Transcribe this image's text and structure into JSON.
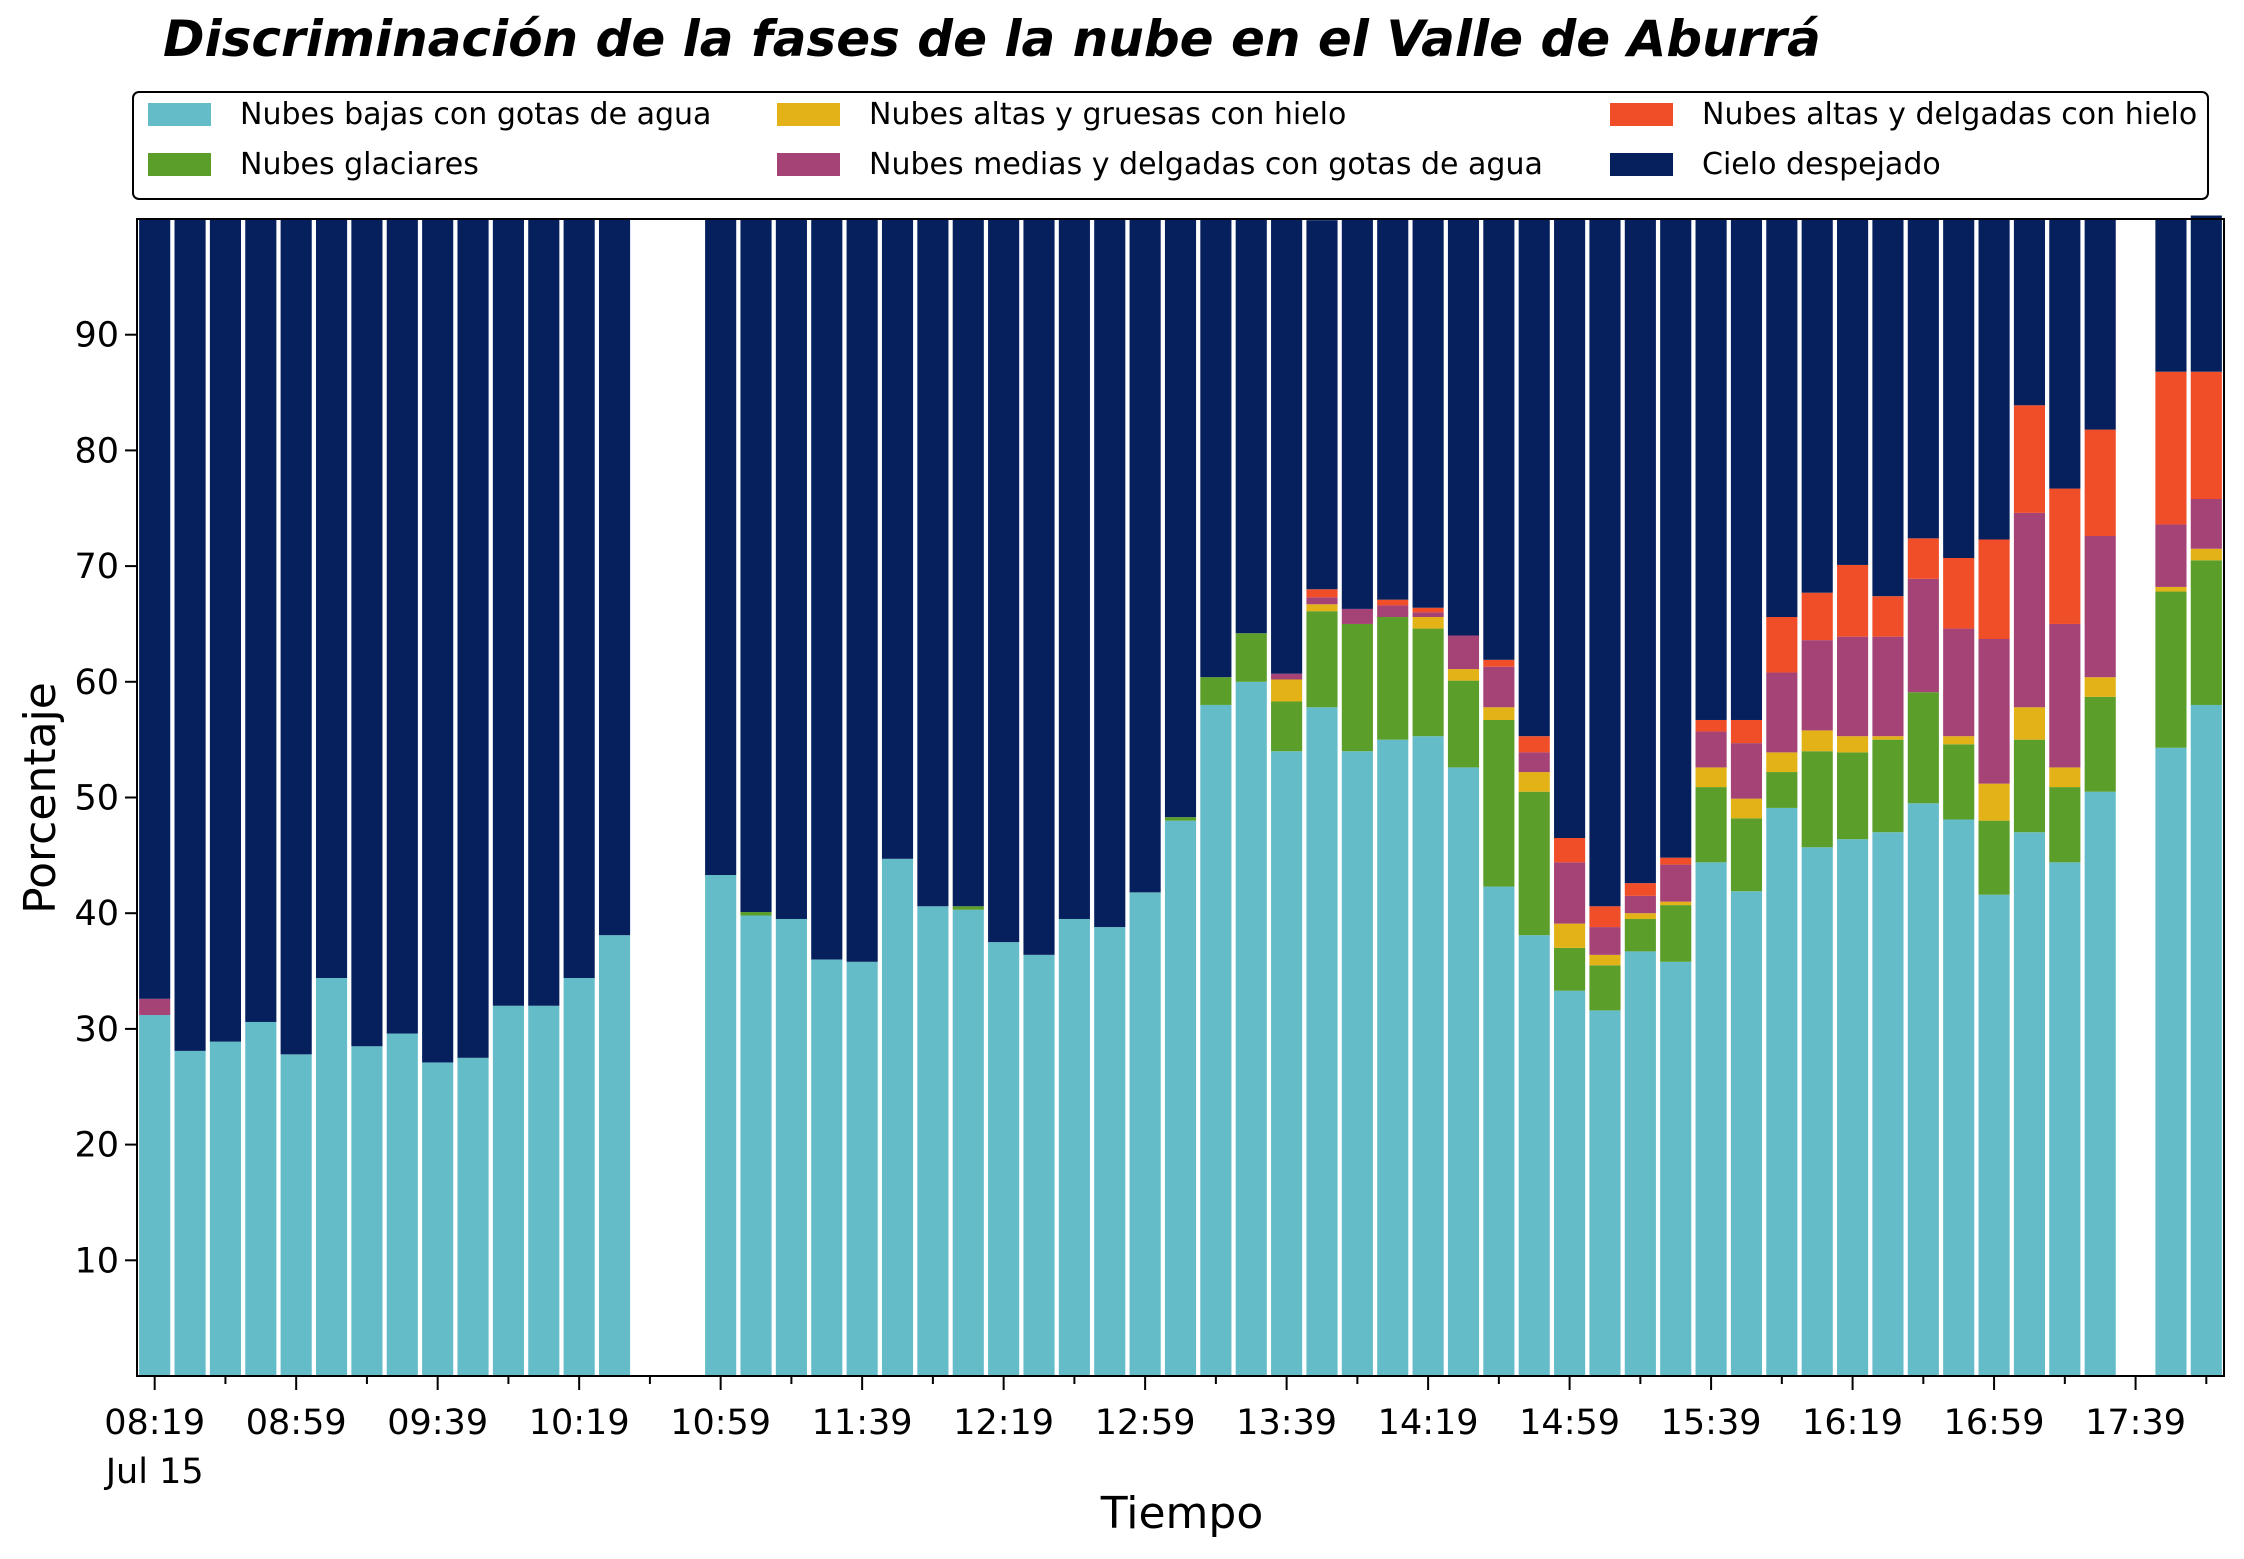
{
  "chart_data": {
    "type": "bar",
    "stacked": true,
    "title": "Discriminación de la fases de la nube en el Valle de Aburrá",
    "xlabel": "Tiempo",
    "ylabel": "Porcentaje",
    "ylim": [
      0,
      100
    ],
    "yticks": [
      10,
      20,
      30,
      40,
      50,
      60,
      70,
      80,
      90
    ],
    "xtick_labels": [
      "08:19",
      "08:59",
      "09:39",
      "10:19",
      "10:59",
      "11:39",
      "12:19",
      "12:59",
      "13:39",
      "14:19",
      "14:59",
      "15:39",
      "16:19",
      "16:59",
      "17:39"
    ],
    "xtick_sublabel": "Jul 15",
    "legend_position": "top",
    "grid": false,
    "x": [
      "08:19",
      "08:29",
      "08:39",
      "08:49",
      "08:59",
      "09:09",
      "09:19",
      "09:29",
      "09:39",
      "09:49",
      "09:59",
      "10:09",
      "10:19",
      "10:29",
      "10:39",
      "10:49",
      "10:59",
      "11:09",
      "11:19",
      "11:29",
      "11:39",
      "11:49",
      "11:59",
      "12:09",
      "12:19",
      "12:29",
      "12:39",
      "12:49",
      "12:59",
      "13:09",
      "13:19",
      "13:29",
      "13:39",
      "13:49",
      "13:59",
      "14:09",
      "14:19",
      "14:29",
      "14:39",
      "14:49",
      "14:59",
      "15:09",
      "15:19",
      "15:29",
      "15:39",
      "15:49",
      "15:59",
      "16:09",
      "16:19",
      "16:29",
      "16:39",
      "16:49",
      "16:59",
      "17:09",
      "17:19",
      "17:29",
      "17:39",
      "17:49",
      "17:59"
    ],
    "series": [
      {
        "name": "Nubes bajas con gotas de agua",
        "color": "#65BCC9",
        "values": [
          31.2,
          28.1,
          28.9,
          30.6,
          27.8,
          34.4,
          28.5,
          29.6,
          27.1,
          27.5,
          32.0,
          32.0,
          34.4,
          38.1,
          null,
          null,
          43.3,
          39.8,
          39.5,
          36.0,
          35.8,
          44.7,
          40.6,
          40.3,
          37.5,
          36.4,
          39.5,
          38.8,
          41.8,
          48.0,
          58.0,
          60.0,
          54.0,
          57.8,
          54.0,
          55.0,
          55.3,
          52.6,
          42.3,
          38.1,
          33.3,
          31.6,
          36.7,
          35.8,
          44.4,
          41.9,
          49.1,
          45.7,
          46.4,
          47.0,
          49.5,
          48.1,
          41.6,
          47.0,
          44.4,
          50.5,
          null,
          54.3,
          58.0
        ]
      },
      {
        "name": "Nubes glaciares",
        "color": "#5B9E29",
        "values": [
          0,
          0,
          0,
          0,
          0,
          0,
          0,
          0,
          0,
          0,
          0,
          0,
          0,
          0,
          null,
          null,
          0,
          0.3,
          0,
          0,
          0,
          0,
          0,
          0.3,
          0,
          0,
          0,
          0,
          0,
          0.3,
          2.4,
          4.2,
          4.3,
          8.3,
          11.0,
          10.6,
          9.3,
          7.5,
          14.4,
          12.4,
          3.7,
          3.9,
          2.8,
          4.9,
          6.5,
          6.3,
          3.1,
          8.3,
          7.5,
          8.0,
          9.6,
          6.5,
          6.4,
          8.0,
          6.5,
          8.2,
          null,
          13.5,
          12.5
        ]
      },
      {
        "name": "Nubes altas y gruesas con hielo",
        "color": "#E2B217",
        "values": [
          0,
          0,
          0,
          0,
          0,
          0,
          0,
          0,
          0,
          0,
          0,
          0,
          0,
          0,
          null,
          null,
          0,
          0,
          0,
          0,
          0,
          0,
          0,
          0,
          0,
          0,
          0,
          0,
          0,
          0,
          0,
          0,
          1.9,
          0.6,
          0,
          0,
          1.0,
          1.0,
          1.1,
          1.7,
          2.1,
          0.9,
          0.5,
          0.3,
          1.7,
          1.7,
          1.7,
          1.8,
          1.4,
          0.3,
          0,
          0.7,
          3.2,
          2.8,
          1.7,
          1.7,
          null,
          0.4,
          1.0
        ]
      },
      {
        "name": "Nubes medias y delgadas con gotas de agua",
        "color": "#A54276",
        "values": [
          1.4,
          0,
          0,
          0,
          0,
          0,
          0,
          0,
          0,
          0,
          0,
          0,
          0,
          0,
          null,
          null,
          0,
          0,
          0,
          0,
          0,
          0,
          0,
          0,
          0,
          0,
          0,
          0,
          0,
          0,
          0,
          0,
          0.5,
          0.6,
          1.3,
          1.0,
          0.4,
          2.9,
          3.5,
          1.7,
          5.3,
          2.4,
          1.5,
          3.2,
          3.1,
          4.8,
          6.9,
          7.8,
          8.6,
          8.6,
          9.8,
          9.3,
          12.5,
          16.8,
          12.4,
          12.2,
          null,
          5.4,
          4.3
        ]
      },
      {
        "name": "Nubes altas y delgadas con hielo",
        "color": "#F04D29",
        "values": [
          0,
          0,
          0,
          0,
          0,
          0,
          0,
          0,
          0,
          0,
          0,
          0,
          0,
          0,
          null,
          null,
          0,
          0,
          0,
          0,
          0,
          0,
          0,
          0,
          0,
          0,
          0,
          0,
          0,
          0,
          0,
          0,
          0,
          0.7,
          0,
          0.5,
          0.4,
          0,
          0.6,
          1.4,
          2.1,
          1.8,
          1.1,
          0.6,
          1.0,
          2.0,
          4.8,
          4.1,
          6.2,
          3.5,
          3.5,
          6.1,
          8.6,
          9.3,
          11.7,
          9.2,
          null,
          13.2,
          11.0
        ]
      },
      {
        "name": "Cielo despejado",
        "color": "#06205E",
        "values": [
          67.4,
          71.9,
          71.1,
          69.4,
          72.2,
          65.6,
          71.5,
          70.4,
          72.9,
          72.5,
          68.0,
          68.0,
          65.6,
          61.9,
          null,
          null,
          56.7,
          59.9,
          60.5,
          64.0,
          64.2,
          55.3,
          59.4,
          59.4,
          62.5,
          63.6,
          60.5,
          61.2,
          58.2,
          51.7,
          39.6,
          35.8,
          39.3,
          31.9,
          33.7,
          32.9,
          33.6,
          36.0,
          38.1,
          44.7,
          53.5,
          59.4,
          57.4,
          55.2,
          43.3,
          43.3,
          34.4,
          32.3,
          29.9,
          32.6,
          27.6,
          29.3,
          27.7,
          16.1,
          23.3,
          18.2,
          null,
          13.2,
          13.5
        ]
      }
    ]
  }
}
